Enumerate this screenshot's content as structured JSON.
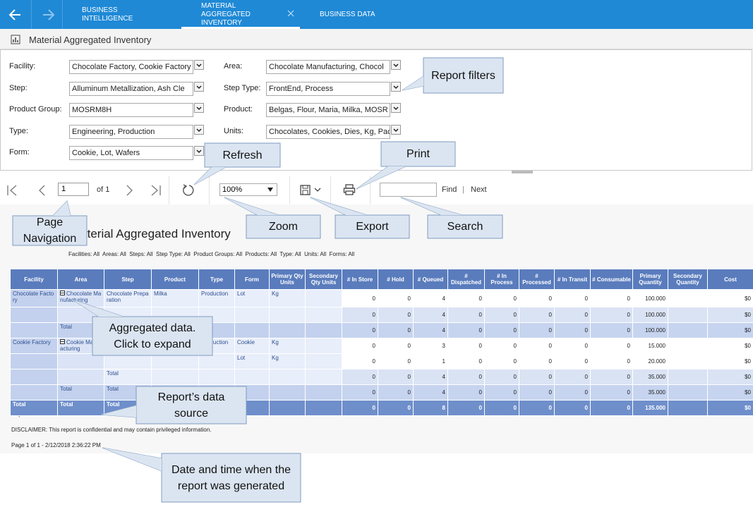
{
  "nav": {
    "tabs": [
      "BUSINESS INTELLIGENCE",
      "MATERIAL AGGREGATED INVENTORY",
      "BUSINESS DATA"
    ],
    "active_tab": 1
  },
  "header": {
    "title": "Material Aggregated Inventory"
  },
  "filters": [
    {
      "label": "Facility:",
      "value": "Chocolate Factory, Cookie Factory"
    },
    {
      "label": "Area:",
      "value": "Chocolate Manufacturing, Chocol"
    },
    {
      "label": "Step:",
      "value": "Alluminum Metallization, Ash Cle"
    },
    {
      "label": "Step Type:",
      "value": "FrontEnd, Process"
    },
    {
      "label": "Product Group:",
      "value": "MOSRM8H"
    },
    {
      "label": "Product:",
      "value": "Belgas, Flour, Maria, Milka, MOSR"
    },
    {
      "label": "Type:",
      "value": "Engineering, Production"
    },
    {
      "label": "Units:",
      "value": "Chocolates, Cookies, Dies, Kg, Pac"
    },
    {
      "label": "Form:",
      "value": "Cookie, Lot, Wafers"
    }
  ],
  "toolbar": {
    "page": "1",
    "page_count": "of 1",
    "zoom": "100%",
    "find": "Find",
    "separator": "|",
    "next": "Next"
  },
  "report": {
    "title": "Material Aggregated Inventory",
    "parameters": "Facilities: All  Areas: All  Steps: All  Step Type: All  Product Groups: All  Products: All  Type: All  Units: All  Forms: All",
    "table": {
      "columns": [
        "Facility",
        "Area",
        "Step",
        "Product",
        "Type",
        "Form",
        "Primary Qty Units",
        "Secondary Qty Units",
        "# In Store",
        "# Hold",
        "# Queued",
        "# Dispatched",
        "# In Process",
        "# Processed",
        "# In Transit",
        "# Consumable",
        "Primary Quantity",
        "Secondary Quantity",
        "Cost"
      ],
      "rows": [
        [
          "Chocolate Factory",
          "Chocolate Manufacturing",
          "Chocolate Preparation",
          "Milka",
          "Production",
          "Lot",
          "Kg",
          null,
          "0",
          "0",
          "4",
          "0",
          "0",
          "0",
          "0",
          "0",
          "100.000",
          null,
          "$0"
        ],
        [
          null,
          null,
          null,
          null,
          null,
          null,
          null,
          null,
          "0",
          "0",
          "4",
          "0",
          "0",
          "0",
          "0",
          "0",
          "100.000",
          null,
          "$0"
        ],
        [
          null,
          "Total",
          null,
          null,
          null,
          null,
          null,
          null,
          "0",
          "0",
          "4",
          "0",
          "0",
          "0",
          "0",
          "0",
          "100.000",
          null,
          "$0"
        ],
        [
          "Cookie Factory",
          "Cookie Manufacturing",
          null,
          null,
          "Production",
          "Cookie",
          "Kg",
          null,
          "0",
          "0",
          "3",
          "0",
          "0",
          "0",
          "0",
          "0",
          "15.000",
          null,
          "$0"
        ],
        [
          null,
          null,
          null,
          null,
          null,
          "Lot",
          "Kg",
          null,
          "0",
          "0",
          "1",
          "0",
          "0",
          "0",
          "0",
          "0",
          "20.000",
          null,
          "$0"
        ],
        [
          null,
          null,
          "Total",
          null,
          null,
          null,
          null,
          null,
          "0",
          "0",
          "4",
          "0",
          "0",
          "0",
          "0",
          "0",
          "35.000",
          null,
          "$0"
        ],
        [
          null,
          "Total",
          "Total",
          null,
          null,
          null,
          null,
          null,
          "0",
          "0",
          "4",
          "0",
          "0",
          "0",
          "0",
          "0",
          "35.000",
          null,
          "$0"
        ],
        [
          "Total",
          "Total",
          "Total",
          null,
          null,
          null,
          null,
          null,
          "0",
          "0",
          "8",
          "0",
          "0",
          "0",
          "0",
          "0",
          "135.000",
          null,
          "$0"
        ]
      ]
    },
    "source": "Report based on ODS data.",
    "disclaimer": "DISCLAIMER: This report is confidential and may contain privileged information.",
    "footer": "Page 1 of 1 - 2/12/2018 2:36:22 PM"
  },
  "callouts": [
    "Report filters",
    "Refresh",
    "Print",
    "Page Navigation",
    "Zoom",
    "Export",
    "Search",
    "Aggregated data. Click to expand",
    "Report’s data source",
    "Date and time when the report was generated"
  ]
}
